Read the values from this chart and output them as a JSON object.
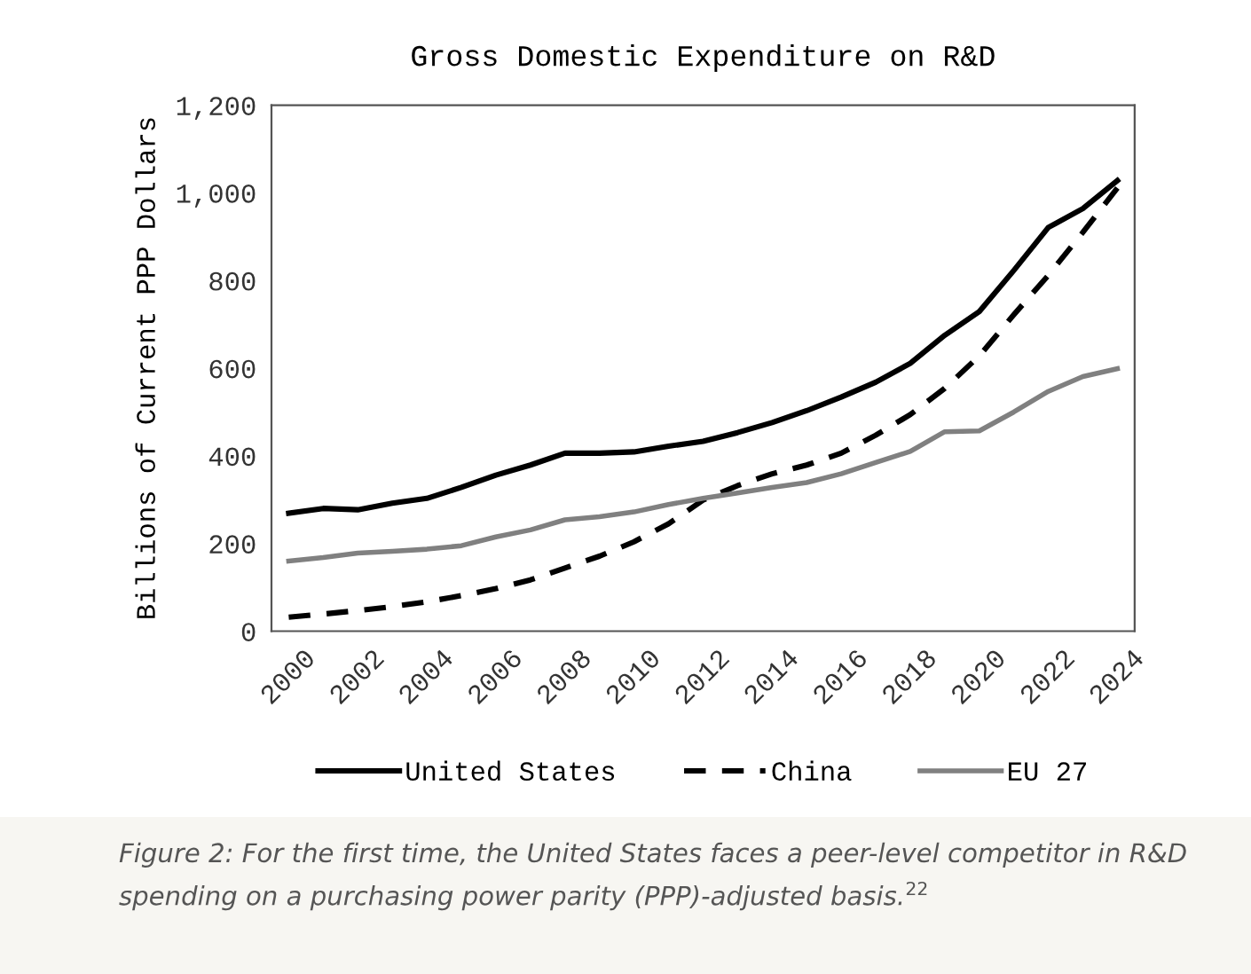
{
  "chart_data": {
    "type": "line",
    "title": "Gross Domestic Expenditure on R&D",
    "ylabel": "Billions of Current PPP Dollars",
    "x": [
      2000,
      2001,
      2002,
      2003,
      2004,
      2005,
      2006,
      2007,
      2008,
      2009,
      2010,
      2011,
      2012,
      2013,
      2014,
      2015,
      2016,
      2017,
      2018,
      2019,
      2020,
      2021,
      2022,
      2023,
      2024
    ],
    "series": [
      {
        "name": "United States",
        "color": "#000000",
        "line_style": "solid",
        "values": [
          269,
          280,
          277,
          292,
          303,
          328,
          356,
          379,
          406,
          406,
          409,
          422,
          433,
          453,
          476,
          503,
          534,
          568,
          611,
          675,
          729,
          823,
          921,
          964,
          1028
        ]
      },
      {
        "name": "China",
        "color": "#000000",
        "line_style": "dashed",
        "values": [
          32,
          39,
          47,
          56,
          67,
          81,
          97,
          117,
          144,
          171,
          204,
          245,
          299,
          332,
          359,
          379,
          406,
          447,
          494,
          554,
          628,
          722,
          812,
          910,
          1011
        ]
      },
      {
        "name": "EU 27",
        "color": "#808080",
        "line_style": "solid",
        "values": [
          160,
          168,
          178,
          182,
          187,
          195,
          215,
          231,
          254,
          261,
          272,
          289,
          303,
          315,
          328,
          339,
          359,
          385,
          410,
          455,
          457,
          500,
          547,
          581,
          599
        ]
      }
    ],
    "xlim": [
      1999.5,
      2024.5
    ],
    "xticks": [
      2000,
      2002,
      2004,
      2006,
      2008,
      2010,
      2012,
      2014,
      2016,
      2018,
      2020,
      2022,
      2024
    ],
    "ylim": [
      0,
      1200
    ],
    "yticks": [
      0,
      200,
      400,
      600,
      800,
      {
        "value": 1000,
        "label": "1,000"
      },
      {
        "value": 1200,
        "label": "1,200"
      }
    ],
    "grid": false,
    "legend": "bottom",
    "annotations": [
      "Figure 2: For the first time, the United States faces a peer-level competitor in R&D spending on a purchasing power parity (PPP)-adjusted basis.$^{22}$"
    ]
  }
}
